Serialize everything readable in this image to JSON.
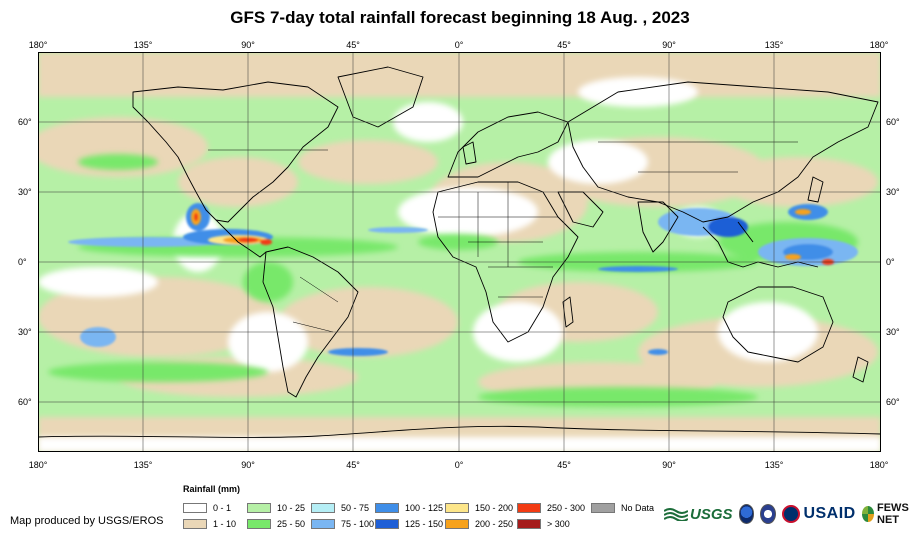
{
  "title": "GFS 7-day total rainfall forecast beginning 18 Aug. , 2023",
  "lon_ticks": [
    "180°",
    "135°",
    "90°",
    "45°",
    "0°",
    "45°",
    "90°",
    "135°",
    "180°"
  ],
  "lat_ticks": [
    "60°",
    "30°",
    "0°",
    "30°",
    "60°"
  ],
  "legend": {
    "title": "Rainfall (mm)",
    "items": [
      {
        "label": "0 - 1",
        "color": "#ffffff"
      },
      {
        "label": "1 - 10",
        "color": "#ead7b7"
      },
      {
        "label": "10 - 25",
        "color": "#b6f0a6"
      },
      {
        "label": "25 - 50",
        "color": "#78e86a"
      },
      {
        "label": "50 - 75",
        "color": "#b5eef5"
      },
      {
        "label": "75 - 100",
        "color": "#7ab6f2"
      },
      {
        "label": "100 - 125",
        "color": "#3f8ee8"
      },
      {
        "label": "125 - 150",
        "color": "#1f5fd6"
      },
      {
        "label": "150 - 200",
        "color": "#fde68a"
      },
      {
        "label": "200 - 250",
        "color": "#f7a21c"
      },
      {
        "label": "250 - 300",
        "color": "#f23b13"
      },
      {
        "label": "> 300",
        "color": "#a51b1b"
      },
      {
        "label": "No Data",
        "color": "#a0a0a0"
      }
    ]
  },
  "credit": "Map produced by USGS/EROS",
  "logos": {
    "usgs": "USGS",
    "usaid": "USAID",
    "fews": "FEWS NET"
  }
}
